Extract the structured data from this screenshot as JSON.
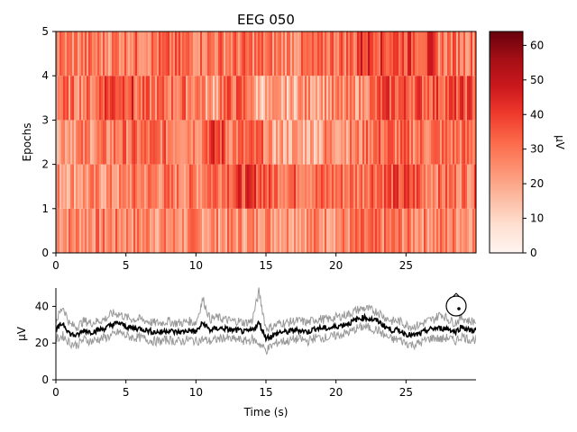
{
  "chart_data": [
    {
      "type": "heatmap",
      "title": "EEG 050",
      "xlabel": "",
      "ylabel": "Epochs",
      "xlim": [
        0,
        30
      ],
      "ylim": [
        0,
        5
      ],
      "x_ticks": [
        0,
        5,
        10,
        15,
        20,
        25
      ],
      "y_ticks": [
        0,
        1,
        2,
        3,
        4,
        5
      ],
      "rows": 5,
      "colormap": "Reds",
      "colorbar": {
        "label": "µV",
        "range": [
          0,
          64
        ],
        "ticks": [
          0,
          10,
          20,
          30,
          40,
          50,
          60
        ]
      },
      "epoch_mean_levels": [
        {
          "epoch": 0,
          "segments": [
            [
              0,
              27
            ],
            [
              7,
              25
            ],
            [
              14.5,
              30
            ],
            [
              15,
              26
            ],
            [
              21,
              28
            ],
            [
              25,
              27
            ]
          ]
        },
        {
          "epoch": 1,
          "segments": [
            [
              0,
              24
            ],
            [
              5,
              28
            ],
            [
              10.5,
              34
            ],
            [
              12,
              38
            ],
            [
              15,
              33
            ],
            [
              18,
              31
            ],
            [
              22,
              36
            ],
            [
              26,
              30
            ]
          ]
        },
        {
          "epoch": 2,
          "segments": [
            [
              0,
              26
            ],
            [
              4,
              30
            ],
            [
              10.5,
              38
            ],
            [
              12,
              30
            ],
            [
              15,
              20
            ],
            [
              19,
              26
            ],
            [
              22,
              32
            ],
            [
              24,
              30
            ]
          ]
        },
        {
          "epoch": 3,
          "segments": [
            [
              0,
              29
            ],
            [
              3,
              40
            ],
            [
              5.5,
              30
            ],
            [
              10.5,
              22
            ],
            [
              11.5,
              32
            ],
            [
              14,
              18
            ],
            [
              17,
              24
            ],
            [
              22,
              30
            ],
            [
              23,
              36
            ]
          ]
        },
        {
          "epoch": 4,
          "segments": [
            [
              0,
              28
            ],
            [
              4,
              30
            ],
            [
              9,
              30
            ],
            [
              15,
              28
            ],
            [
              19,
              32
            ],
            [
              21.5,
              42
            ],
            [
              23,
              38
            ],
            [
              27,
              30
            ]
          ]
        }
      ]
    },
    {
      "type": "line",
      "title": "",
      "xlabel": "Time (s)",
      "ylabel": "µV",
      "xlim": [
        0,
        30
      ],
      "ylim": [
        0,
        50
      ],
      "x_ticks": [
        0,
        5,
        10,
        15,
        20,
        25
      ],
      "x_tick_labels": [
        "0",
        "5",
        "10",
        "15",
        "20",
        "25"
      ],
      "y_ticks": [
        0,
        20,
        40
      ],
      "series": [
        {
          "role": "mean",
          "color": "#000000",
          "x": [
            0,
            0.5,
            1,
            1.5,
            2,
            2.5,
            3,
            3.5,
            4,
            4.5,
            5,
            5.5,
            6,
            6.5,
            7,
            7.5,
            8,
            8.5,
            9,
            9.5,
            10,
            10.5,
            11,
            11.5,
            12,
            12.5,
            13,
            13.5,
            14,
            14.5,
            15,
            15.5,
            16,
            16.5,
            17,
            17.5,
            18,
            18.5,
            19,
            19.5,
            20,
            20.5,
            21,
            21.5,
            22,
            22.5,
            23,
            23.5,
            24,
            24.5,
            25,
            25.5,
            26,
            26.5,
            27,
            27.5,
            28,
            28.5,
            29,
            29.5,
            30
          ],
          "y": [
            27,
            31,
            25,
            24,
            27,
            26,
            27,
            28,
            30,
            31,
            29,
            28,
            28,
            27,
            26,
            26,
            27,
            26,
            26,
            27,
            26,
            31,
            27,
            28,
            28,
            27,
            27,
            26,
            27,
            31,
            23,
            24,
            26,
            26,
            27,
            27,
            26,
            28,
            28,
            28,
            29,
            30,
            31,
            33,
            34,
            33,
            32,
            29,
            27,
            27,
            25,
            24,
            25,
            27,
            28,
            28,
            28,
            26,
            29,
            27,
            27
          ]
        },
        {
          "role": "std-upper",
          "color": "#999999",
          "x": [
            0,
            0.5,
            1,
            1.5,
            2,
            2.5,
            3,
            3.5,
            4,
            4.5,
            5,
            5.5,
            6,
            6.5,
            7,
            7.5,
            8,
            8.5,
            9,
            9.5,
            10,
            10.5,
            11,
            11.5,
            12,
            12.5,
            13,
            13.5,
            14,
            14.5,
            15,
            15.5,
            16,
            16.5,
            17,
            17.5,
            18,
            18.5,
            19,
            19.5,
            20,
            20.5,
            21,
            21.5,
            22,
            22.5,
            23,
            23.5,
            24,
            24.5,
            25,
            25.5,
            26,
            26.5,
            27,
            27.5,
            28,
            28.5,
            29,
            29.5,
            30
          ],
          "y": [
            32,
            40,
            30,
            29,
            32,
            31,
            32,
            33,
            36,
            36,
            34,
            33,
            33,
            32,
            31,
            31,
            32,
            31,
            31,
            32,
            31,
            44,
            33,
            34,
            33,
            32,
            32,
            31,
            32,
            48,
            28,
            29,
            31,
            31,
            32,
            32,
            31,
            33,
            33,
            33,
            34,
            35,
            36,
            38,
            39,
            38,
            37,
            34,
            32,
            32,
            30,
            29,
            30,
            32,
            33,
            36,
            33,
            31,
            34,
            32,
            32
          ]
        },
        {
          "role": "std-lower",
          "color": "#999999",
          "x": [
            0,
            0.5,
            1,
            1.5,
            2,
            2.5,
            3,
            3.5,
            4,
            4.5,
            5,
            5.5,
            6,
            6.5,
            7,
            7.5,
            8,
            8.5,
            9,
            9.5,
            10,
            10.5,
            11,
            11.5,
            12,
            12.5,
            13,
            13.5,
            14,
            14.5,
            15,
            15.5,
            16,
            16.5,
            17,
            17.5,
            18,
            18.5,
            19,
            19.5,
            20,
            20.5,
            21,
            21.5,
            22,
            22.5,
            23,
            23.5,
            24,
            24.5,
            25,
            25.5,
            26,
            26.5,
            27,
            27.5,
            28,
            28.5,
            29,
            29.5,
            30
          ],
          "y": [
            22,
            24,
            20,
            19,
            22,
            21,
            22,
            23,
            24,
            26,
            24,
            23,
            23,
            22,
            21,
            21,
            22,
            21,
            21,
            22,
            21,
            22,
            21,
            22,
            23,
            22,
            22,
            21,
            22,
            20,
            16,
            19,
            21,
            21,
            22,
            22,
            21,
            23,
            23,
            23,
            24,
            25,
            26,
            28,
            29,
            28,
            27,
            24,
            22,
            22,
            20,
            19,
            20,
            22,
            23,
            22,
            23,
            21,
            24,
            22,
            22
          ]
        }
      ],
      "sensor_icon": "head-outline-icon"
    }
  ]
}
